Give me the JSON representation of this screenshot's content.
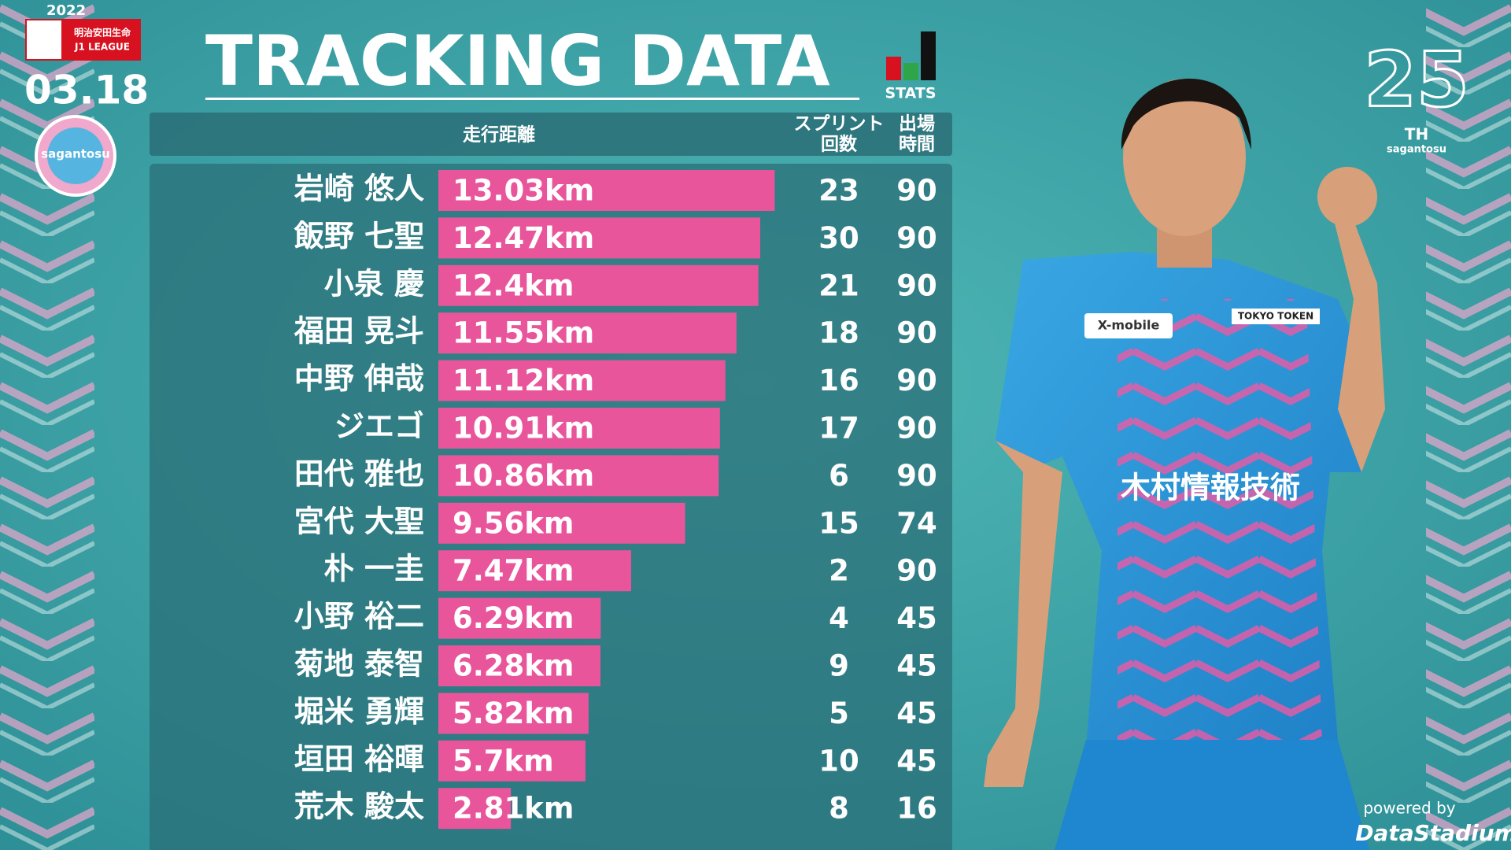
{
  "header": {
    "season": "2022",
    "league_lines": [
      "明治安田生命",
      "J1 LEAGUE"
    ],
    "date": "03.18",
    "club": "sagantosu",
    "title": "TRACKING DATA",
    "badge": "STATS"
  },
  "chart_data": {
    "type": "bar",
    "orientation": "horizontal",
    "value_header": "走行距離",
    "categories": [
      "岩崎 悠人",
      "飯野 七聖",
      "小泉 慶",
      "福田 晃斗",
      "中野 伸哉",
      "ジエゴ",
      "田代 雅也",
      "宮代 大聖",
      "朴 一圭",
      "小野 裕二",
      "菊地 泰智",
      "堀米 勇輝",
      "垣田 裕暉",
      "荒木 駿太"
    ],
    "values": [
      13.03,
      12.47,
      12.4,
      11.55,
      11.12,
      10.91,
      10.86,
      9.56,
      7.47,
      6.29,
      6.28,
      5.82,
      5.7,
      2.81
    ],
    "value_labels": [
      "13.03km",
      "12.47km",
      "12.4km",
      "11.55km",
      "11.12km",
      "10.91km",
      "10.86km",
      "9.56km",
      "7.47km",
      "6.29km",
      "6.28km",
      "5.82km",
      "5.7km",
      "2.81km"
    ],
    "color": "#e8559b",
    "columns": [
      {
        "header_lines": [
          "スプリント",
          "回数"
        ],
        "values": [
          23,
          30,
          21,
          18,
          16,
          17,
          6,
          15,
          2,
          4,
          9,
          5,
          10,
          8
        ]
      },
      {
        "header_lines": [
          "出場",
          "時間"
        ],
        "values": [
          90,
          90,
          90,
          90,
          90,
          90,
          90,
          74,
          90,
          45,
          45,
          45,
          45,
          16
        ]
      }
    ]
  },
  "photo": {
    "sponsors": [
      "X-mobile",
      "TOKYO TOKEN",
      "木村情報技術"
    ]
  },
  "anniversary": {
    "number": "25",
    "suffix": "TH",
    "club": "sagantosu"
  },
  "footer": {
    "powered_by": "powered by",
    "provider": "DataStadium"
  }
}
